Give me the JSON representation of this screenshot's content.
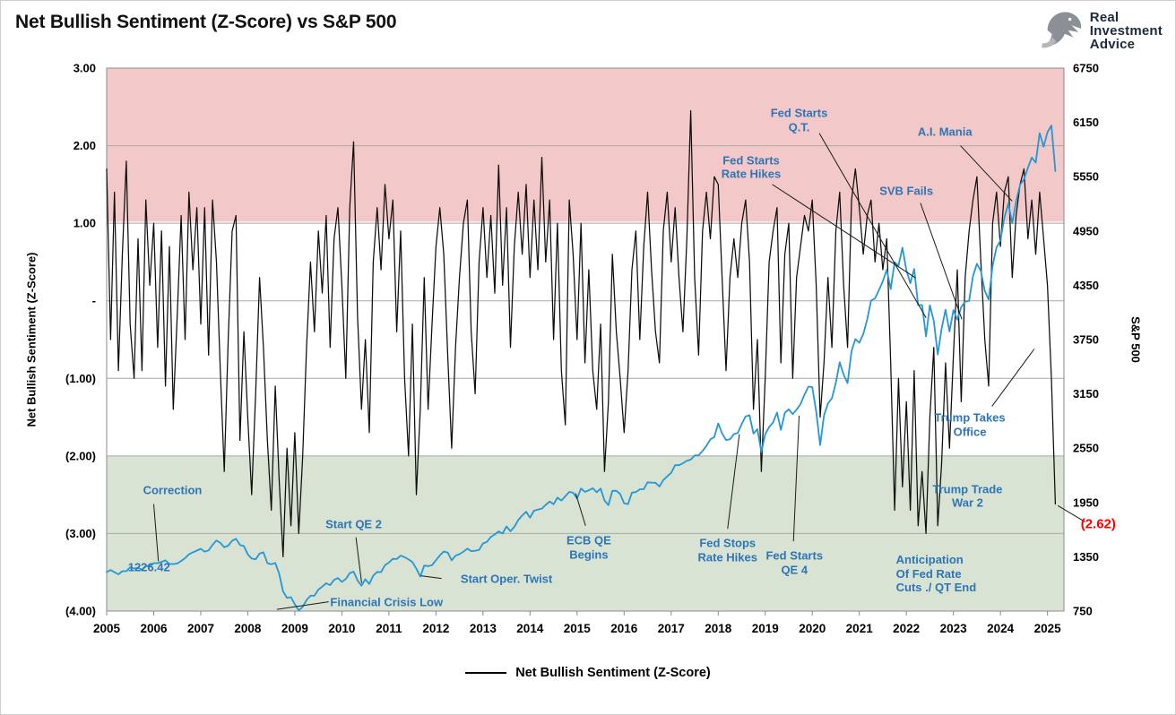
{
  "header": {
    "logo": {
      "line1": "Real",
      "line2": "Investment",
      "line3": "Advice"
    }
  },
  "chart_data": {
    "type": "line",
    "title": "Net Bullish Sentiment (Z-Score) vs S&P 500",
    "legend": [
      "Net Bullish Sentiment (Z-Score)"
    ],
    "x_axis": {
      "ticks": [
        "2005",
        "2006",
        "2007",
        "2008",
        "2009",
        "2010",
        "2011",
        "2012",
        "2013",
        "2014",
        "2015",
        "2016",
        "2017",
        "2018",
        "2019",
        "2020",
        "2021",
        "2022",
        "2023",
        "2024",
        "2025"
      ],
      "range_years": [
        2005,
        2025.35
      ]
    },
    "left_axis": {
      "label": "Net Bullish Sentiment (Z-Score)",
      "range": [
        -4,
        3
      ],
      "ticks": [
        "3.00",
        "2.00",
        "1.00",
        "-",
        "(1.00)",
        "(2.00)",
        "(3.00)",
        "(4.00)"
      ]
    },
    "right_axis": {
      "label": "S&P 500",
      "range": [
        750,
        6750
      ],
      "ticks": [
        "6750",
        "6150",
        "5550",
        "4950",
        "4350",
        "3750",
        "3150",
        "2550",
        "1950",
        "1350",
        "750"
      ]
    },
    "grid_z_values": [
      2,
      1,
      0,
      -1,
      -2,
      -3
    ],
    "bands": [
      {
        "name": "overbought-zone",
        "from_z": 1.02,
        "to_z": 3.0,
        "color": "#f2c9c8"
      },
      {
        "name": "oversold-zone",
        "from_z": -4.0,
        "to_z": -2.0,
        "color": "#d8e3d4"
      }
    ],
    "x_start": 2005.0,
    "x_step_months": 1,
    "series": [
      {
        "name": "Net Bullish Sentiment (Z-Score)",
        "axis": "left",
        "color": "#0d0d0d",
        "width": 1.25,
        "values": [
          1.7,
          -0.5,
          1.4,
          -0.9,
          0.6,
          1.8,
          -0.3,
          -1.0,
          0.8,
          -0.9,
          1.3,
          0.2,
          1.0,
          -0.6,
          0.9,
          -1.1,
          0.7,
          -1.4,
          -0.2,
          1.1,
          -0.5,
          1.4,
          0.4,
          1.2,
          -0.3,
          1.2,
          -0.7,
          1.3,
          0.5,
          -0.9,
          -2.2,
          -0.5,
          0.9,
          1.1,
          -1.8,
          -0.4,
          -1.5,
          -2.5,
          -1.2,
          0.3,
          -0.6,
          -1.8,
          -2.7,
          -1.1,
          -2.3,
          -3.3,
          -1.9,
          -2.9,
          -1.7,
          -3.0,
          -2.0,
          -0.6,
          0.5,
          -0.4,
          0.9,
          0.1,
          1.1,
          -0.6,
          0.8,
          1.2,
          0.2,
          -1.0,
          1.2,
          2.05,
          -0.2,
          -1.4,
          -0.5,
          -1.7,
          0.5,
          1.2,
          0.4,
          1.5,
          0.8,
          1.3,
          -0.4,
          0.9,
          -1.0,
          -2.0,
          -0.3,
          -2.5,
          -1.4,
          0.3,
          -1.4,
          -0.3,
          0.7,
          1.2,
          0.6,
          -0.7,
          -1.9,
          -0.6,
          0.3,
          1.0,
          1.3,
          -0.4,
          -1.2,
          0.5,
          1.2,
          0.3,
          1.1,
          0.1,
          1.75,
          0.2,
          1.2,
          -0.6,
          0.7,
          1.4,
          0.6,
          1.5,
          0.3,
          1.3,
          0.4,
          1.85,
          0.5,
          1.3,
          -0.5,
          1.0,
          -0.9,
          -1.6,
          1.3,
          0.6,
          -0.5,
          1.0,
          -0.8,
          0.4,
          -0.9,
          -1.4,
          -0.3,
          -2.2,
          -1.3,
          0.6,
          -0.4,
          -1.0,
          -1.7,
          -0.9,
          0.4,
          0.9,
          -0.5,
          0.7,
          1.4,
          0.4,
          -0.4,
          -0.8,
          0.9,
          1.4,
          0.5,
          1.2,
          0.3,
          -0.4,
          0.8,
          2.45,
          0.3,
          -0.7,
          0.9,
          1.4,
          0.8,
          1.6,
          1.5,
          0.3,
          -0.9,
          0.3,
          0.8,
          0.3,
          1.0,
          1.3,
          0.5,
          -1.4,
          -0.5,
          -2.2,
          -1.0,
          0.5,
          0.9,
          1.2,
          -0.8,
          0.6,
          1.0,
          -1.0,
          0.3,
          0.7,
          1.1,
          0.9,
          1.3,
          0.2,
          -1.5,
          -0.8,
          0.3,
          -0.6,
          0.9,
          1.4,
          0.2,
          -0.6,
          1.3,
          1.7,
          1.2,
          0.6,
          1.1,
          1.3,
          0.5,
          1.0,
          0.4,
          0.8,
          -0.8,
          -2.7,
          -1.0,
          -2.4,
          -1.3,
          -2.7,
          -0.9,
          -2.9,
          -2.2,
          -3.0,
          -1.5,
          -0.6,
          -2.9,
          -2.1,
          -0.8,
          -1.9,
          -0.7,
          0.4,
          -1.3,
          0.3,
          0.9,
          1.3,
          1.6,
          0.5,
          -0.5,
          -1.1,
          1.0,
          1.4,
          0.7,
          1.4,
          1.6,
          0.3,
          1.1,
          1.5,
          1.7,
          0.8,
          1.3,
          0.6,
          1.4,
          0.8,
          0.2,
          -1.0,
          -2.62
        ]
      },
      {
        "name": "S&P 500",
        "axis": "right",
        "color": "#2597d3",
        "width": 1.8,
        "values": [
          1181,
          1203,
          1180,
          1156,
          1191,
          1191,
          1234,
          1220,
          1228,
          1207,
          1249,
          1248,
          1280,
          1280,
          1294,
          1310,
          1270,
          1270,
          1276,
          1303,
          1335,
          1377,
          1400,
          1418,
          1438,
          1406,
          1420,
          1482,
          1530,
          1503,
          1455,
          1473,
          1526,
          1549,
          1481,
          1468,
          1378,
          1330,
          1322,
          1385,
          1400,
          1280,
          1267,
          1282,
          1166,
          968,
          896,
          903,
          825,
          757,
          797,
          872,
          919,
          919,
          987,
          1020,
          1057,
          1036,
          1095,
          1115,
          1073,
          1104,
          1169,
          1186,
          1089,
          1030,
          1101,
          1049,
          1141,
          1183,
          1180,
          1257,
          1286,
          1327,
          1325,
          1363,
          1345,
          1320,
          1292,
          1218,
          1131,
          1253,
          1246,
          1257,
          1312,
          1365,
          1408,
          1397,
          1310,
          1362,
          1379,
          1406,
          1440,
          1412,
          1416,
          1426,
          1498,
          1514,
          1569,
          1597,
          1630,
          1606,
          1685,
          1632,
          1681,
          1756,
          1805,
          1848,
          1782,
          1859,
          1872,
          1883,
          1923,
          1960,
          1930,
          2003,
          1972,
          2018,
          2067,
          2058,
          1994,
          2104,
          2067,
          2085,
          2107,
          2063,
          2103,
          1972,
          1920,
          2079,
          2080,
          2043,
          1940,
          1932,
          2059,
          2065,
          2096,
          2098,
          2173,
          2170,
          2168,
          2126,
          2198,
          2238,
          2278,
          2363,
          2362,
          2384,
          2411,
          2423,
          2470,
          2471,
          2519,
          2575,
          2647,
          2673,
          2823,
          2713,
          2640,
          2648,
          2705,
          2718,
          2816,
          2901,
          2913,
          2711,
          2760,
          2506,
          2704,
          2784,
          2834,
          2945,
          2752,
          2941,
          2980,
          2926,
          2976,
          3037,
          3140,
          3230,
          3225,
          2954,
          2584,
          2912,
          3044,
          3100,
          3271,
          3500,
          3363,
          3269,
          3621,
          3756,
          3714,
          3811,
          3972,
          4181,
          4204,
          4297,
          4395,
          4522,
          4307,
          4605,
          4567,
          4766,
          4515,
          4373,
          4530,
          4131,
          4132,
          3785,
          4130,
          3955,
          3585,
          3871,
          4080,
          3839,
          4076,
          3970,
          4109,
          4169,
          4179,
          4450,
          4588,
          4507,
          4288,
          4193,
          4567,
          4769,
          4845,
          5096,
          5254,
          5035,
          5277,
          5460,
          5522,
          5648,
          5762,
          5705,
          6032,
          5882,
          6041,
          6115,
          5612
        ]
      }
    ],
    "annotations": [
      {
        "id": "correction",
        "lines": [
          "Correction"
        ],
        "color": "#2e75b6",
        "align": "center",
        "pos": {
          "year": 2006.4,
          "z": -2.44
        },
        "leader": {
          "from": {
            "year": 2006.0,
            "z": -2.62
          },
          "to": {
            "year": 2006.1,
            "price": 1300
          }
        }
      },
      {
        "id": "sp-start-value",
        "lines": [
          "1226.42"
        ],
        "color": "#2e75b6",
        "align": "center",
        "pos": {
          "year": 2005.9,
          "z": -3.43
        }
      },
      {
        "id": "start-qe2",
        "lines": [
          "Start QE 2"
        ],
        "color": "#2e75b6",
        "align": "center",
        "pos": {
          "year": 2010.25,
          "z": -2.88
        },
        "leader": {
          "from": {
            "year": 2010.3,
            "z": -3.05
          },
          "to": {
            "year": 2010.42,
            "price": 1060
          }
        }
      },
      {
        "id": "start-oper-twist",
        "lines": [
          "Start Oper. Twist"
        ],
        "color": "#2e75b6",
        "align": "center",
        "pos": {
          "year": 2013.5,
          "z": -3.58
        },
        "leader": {
          "from": {
            "year": 2012.12,
            "z": -3.58
          },
          "to": {
            "year": 2011.68,
            "price": 1140
          }
        }
      },
      {
        "id": "financial-crisis-low",
        "lines": [
          "Financial Crisis Low"
        ],
        "color": "#2e75b6",
        "align": "center",
        "pos": {
          "year": 2010.95,
          "z": -3.88
        },
        "leader": {
          "from": {
            "year": 2009.72,
            "z": -3.88
          },
          "to": {
            "year": 2008.62,
            "price": 768
          }
        }
      },
      {
        "id": "ecb-qe-begins",
        "lines": [
          "ECB QE",
          "Begins"
        ],
        "color": "#2e75b6",
        "align": "center",
        "pos": {
          "year": 2015.25,
          "z": -3.18
        },
        "leader": {
          "from": {
            "year": 2015.18,
            "z": -2.9
          },
          "to": {
            "year": 2014.97,
            "price": 2050
          }
        }
      },
      {
        "id": "fed-stops-rate-hikes",
        "lines": [
          "Fed Stops",
          "Rate Hikes"
        ],
        "color": "#2e75b6",
        "align": "center",
        "pos": {
          "year": 2018.2,
          "z": -3.22
        },
        "leader": {
          "from": {
            "year": 2018.2,
            "z": -2.94
          },
          "to": {
            "year": 2018.45,
            "price": 2705
          }
        }
      },
      {
        "id": "fed-starts-qe4",
        "lines": [
          "Fed Starts",
          "QE 4"
        ],
        "color": "#2e75b6",
        "align": "center",
        "pos": {
          "year": 2019.62,
          "z": -3.38
        },
        "leader": {
          "from": {
            "year": 2019.6,
            "z": -3.1
          },
          "to": {
            "year": 2019.72,
            "price": 2910
          }
        }
      },
      {
        "id": "fed-starts-rate-hikes",
        "lines": [
          "Fed Starts",
          "Rate Hikes"
        ],
        "color": "#2e75b6",
        "align": "center",
        "pos": {
          "year": 2018.7,
          "z": 1.72
        },
        "leader": {
          "from": {
            "year": 2019.15,
            "z": 1.5
          },
          "to": {
            "year": 2022.2,
            "price": 4430
          }
        }
      },
      {
        "id": "fed-starts-qt",
        "lines": [
          "Fed Starts",
          "Q.T."
        ],
        "color": "#2e75b6",
        "align": "center",
        "pos": {
          "year": 2019.72,
          "z": 2.33
        },
        "leader": {
          "from": {
            "year": 2020.15,
            "z": 2.16
          },
          "to": {
            "year": 2022.42,
            "price": 3990
          }
        }
      },
      {
        "id": "svb-fails",
        "lines": [
          "SVB Fails"
        ],
        "color": "#2e75b6",
        "align": "center",
        "pos": {
          "year": 2022.0,
          "z": 1.42
        },
        "leader": {
          "from": {
            "year": 2022.3,
            "z": 1.26
          },
          "to": {
            "year": 2023.18,
            "price": 3975
          }
        }
      },
      {
        "id": "ai-mania",
        "lines": [
          "A.I. Mania"
        ],
        "color": "#2e75b6",
        "align": "center",
        "pos": {
          "year": 2022.82,
          "z": 2.18
        },
        "leader": {
          "from": {
            "year": 2023.15,
            "z": 2.0
          },
          "to": {
            "year": 2024.25,
            "price": 5280
          }
        }
      },
      {
        "id": "trump-takes-office",
        "lines": [
          "Trump Takes",
          "Office"
        ],
        "color": "#2e75b6",
        "align": "center",
        "pos": {
          "year": 2023.35,
          "z": -1.6
        },
        "leader": {
          "from": {
            "year": 2023.82,
            "z": -1.36
          },
          "to": {
            "year": 2024.72,
            "z": -0.62
          }
        }
      },
      {
        "id": "trump-trade-war-2",
        "lines": [
          "Trump Trade",
          "War 2"
        ],
        "color": "#2e75b6",
        "align": "center",
        "pos": {
          "year": 2023.3,
          "z": -2.52
        }
      },
      {
        "id": "final-zscore-value",
        "lines": [
          "(2.62)"
        ],
        "color": "#fe0000",
        "size": 15,
        "align": "center",
        "pos": {
          "year": 2026.08,
          "z": -2.88
        },
        "leader": {
          "from": {
            "year": 2025.8,
            "z": -2.85
          },
          "to": {
            "year": 2025.22,
            "z": -2.64
          }
        }
      },
      {
        "id": "anticipation-fed-cuts",
        "lines": [
          "Anticipation",
          "Of Fed Rate",
          "Cuts ./ QT End"
        ],
        "color": "#2e75b6",
        "align": "left",
        "pos": {
          "year": 2021.78,
          "z": -3.52
        }
      }
    ]
  }
}
